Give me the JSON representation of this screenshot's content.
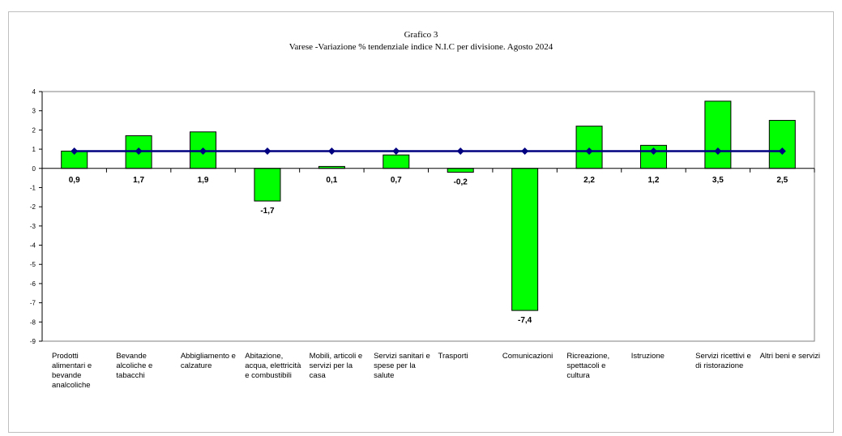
{
  "chart_data": {
    "type": "bar",
    "title": "Grafico 3",
    "subtitle": "Varese -Variazione % tendenziale indice N.I.C per divisione.  Agosto 2024",
    "categories": [
      "Prodotti alimentari e bevande analcoliche",
      "Bevande alcoliche e tabacchi",
      "Abbigliamento e calzature",
      "Abitazione, acqua, elettricità e combustibili",
      "Mobili, articoli e servizi per la casa",
      "Servizi sanitari e spese per la salute",
      "Trasporti",
      "Comunicazioni",
      "Ricreazione, spettacoli e cultura",
      "Istruzione",
      "Servizi ricettivi e di ristorazione",
      "Altri beni e servizi"
    ],
    "values": [
      0.9,
      1.7,
      1.9,
      -1.7,
      0.1,
      0.7,
      -0.2,
      -7.4,
      2.2,
      1.2,
      3.5,
      2.5
    ],
    "value_labels": [
      "0,9",
      "1,7",
      "1,9",
      "-1,7",
      "0,1",
      "0,7",
      "-0,2",
      "-7,4",
      "2,2",
      "1,2",
      "3,5",
      "2,5"
    ],
    "reference_line": [
      0.9,
      0.9,
      0.9,
      0.9,
      0.9,
      0.9,
      0.9,
      0.9,
      0.9,
      0.9,
      0.9,
      0.9
    ],
    "yticks": [
      4,
      3,
      2,
      1,
      0,
      -1,
      -2,
      -3,
      -4,
      -5,
      -6,
      -7,
      -8,
      -9
    ],
    "ylim": [
      -9,
      4
    ],
    "xlabel": "",
    "ylabel": "",
    "grid": false,
    "colors": {
      "bar": "#00ff00",
      "bar_edge": "#000000",
      "line": "#000080",
      "marker": "#000080"
    }
  }
}
